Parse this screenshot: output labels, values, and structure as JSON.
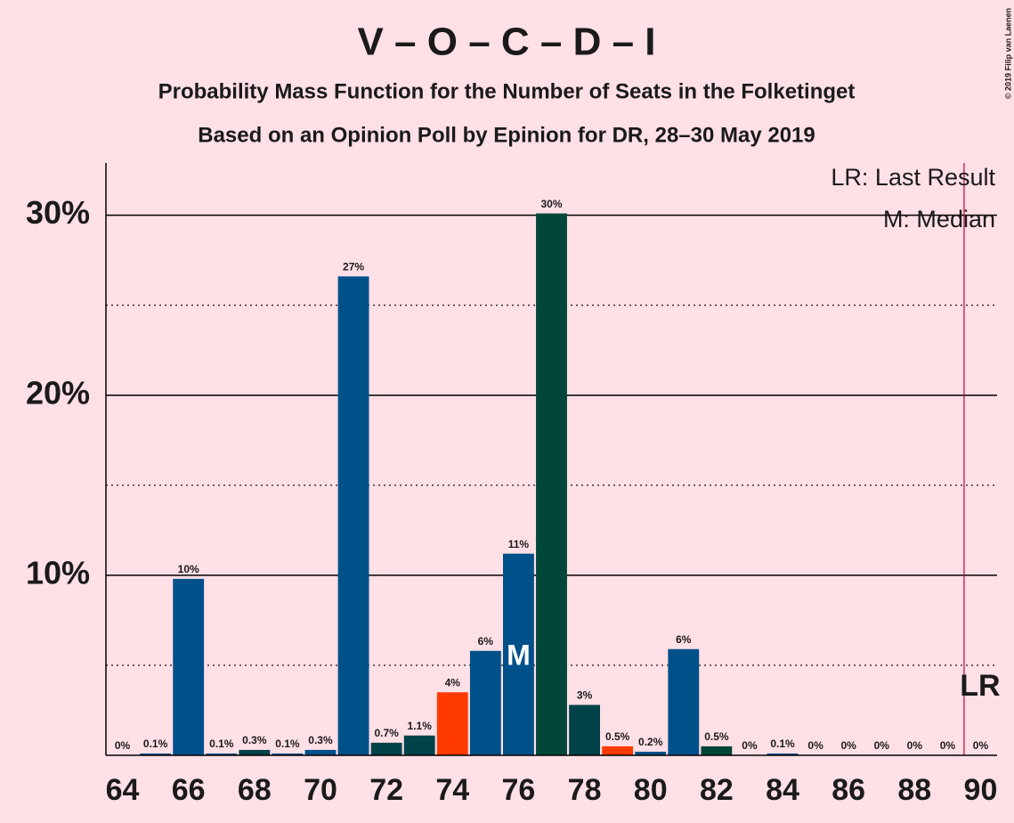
{
  "chart_data": {
    "type": "bar",
    "title": "V – O – C – D – I",
    "subtitle": "Probability Mass Function for the Number of Seats in the Folketinget",
    "subtitle2": "Based on an Opinion Poll by Epinion for DR, 28–30 May 2019",
    "copyright": "© 2019 Filip van Laenen",
    "x": [
      64,
      65,
      66,
      67,
      68,
      69,
      70,
      71,
      72,
      73,
      74,
      75,
      76,
      77,
      78,
      79,
      80,
      81,
      82,
      83,
      84,
      85,
      86,
      87,
      88,
      89,
      90
    ],
    "values": [
      0,
      0.1,
      9.8,
      0.1,
      0.3,
      0.1,
      0.3,
      26.6,
      0.7,
      1.1,
      3.5,
      5.8,
      11.2,
      30.1,
      2.8,
      0.5,
      0.2,
      5.9,
      0.5,
      0,
      0.1,
      0,
      0,
      0,
      0,
      0,
      0
    ],
    "value_labels": [
      "0%",
      "0.1%",
      "10%",
      "0.1%",
      "0.3%",
      "0.1%",
      "0.3%",
      "27%",
      "0.7%",
      "1.1%",
      "4%",
      "6%",
      "11%",
      "30%",
      "3%",
      "0.5%",
      "0.2%",
      "6%",
      "0.5%",
      "0%",
      "0.1%",
      "0%",
      "0%",
      "0%",
      "0%",
      "0%",
      "0%"
    ],
    "colors": [
      "#00508a",
      "#00508a",
      "#00508a",
      "#00508a",
      "#00424a",
      "#00508a",
      "#00508a",
      "#00508a",
      "#00424a",
      "#00424a",
      "#ff3a00",
      "#00508a",
      "#00508a",
      "#00473a",
      "#00424a",
      "#ff3a00",
      "#00508a",
      "#00508a",
      "#00473a",
      "#00508a",
      "#00508a",
      "#00508a",
      "#00508a",
      "#00508a",
      "#00508a",
      "#00508a",
      "#00508a"
    ],
    "xlim": [
      63.5,
      90.5
    ],
    "xticks": [
      64,
      66,
      68,
      70,
      72,
      74,
      76,
      78,
      80,
      82,
      84,
      86,
      88,
      90
    ],
    "ylim": [
      0,
      32.9
    ],
    "yticks": [
      {
        "value": 10,
        "label": "10%"
      },
      {
        "value": 20,
        "label": "20%"
      },
      {
        "value": 30,
        "label": "30%"
      }
    ],
    "minor_yticks": [
      5,
      15,
      25
    ],
    "grid": true,
    "median": 76,
    "median_label": "M",
    "last_result": 89.5,
    "last_result_label": "LR",
    "legend": [
      "LR: Last Result",
      "M: Median"
    ]
  }
}
